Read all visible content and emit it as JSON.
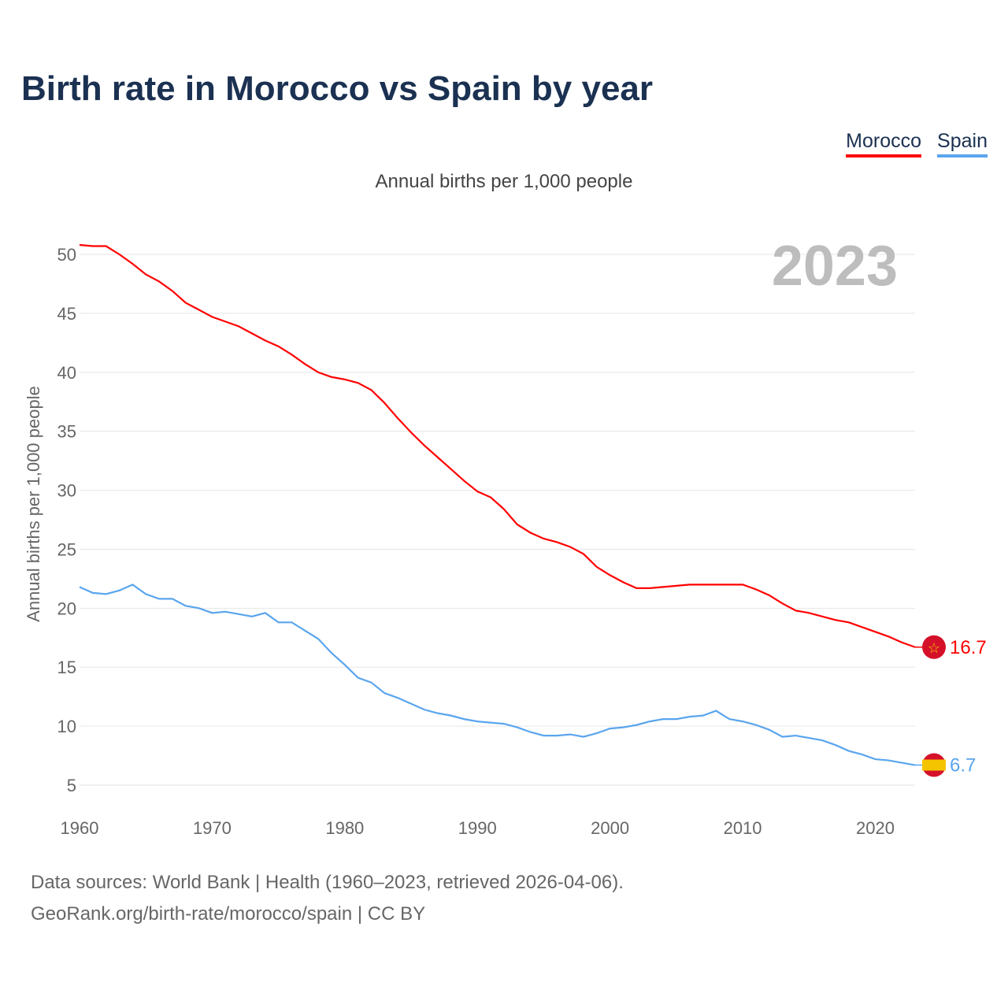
{
  "title": "Birth rate in Morocco vs Spain by year",
  "subtitle": "Annual births per 1,000 people",
  "footer": {
    "line1": "Data sources: World Bank | Health (1960–2023, retrieved 2026-04-06).",
    "line2": "GeoRank.org/birth-rate/morocco/spain | CC BY"
  },
  "colors": {
    "morocco": "#ff0000",
    "spain": "#5aa5ee"
  },
  "chart_data": {
    "type": "line",
    "title": "Birth rate in Morocco vs Spain by year",
    "ylabel": "Annual births per 1,000 people",
    "xlabel": "",
    "year_label": "2023",
    "xlim": [
      1960,
      2023
    ],
    "ylim": [
      5,
      50
    ],
    "xticks": [
      1960,
      1970,
      1980,
      1990,
      2000,
      2010,
      2020
    ],
    "yticks": [
      5,
      10,
      15,
      20,
      25,
      30,
      35,
      40,
      45,
      50
    ],
    "legend": "top-right",
    "x": [
      1960,
      1961,
      1962,
      1963,
      1964,
      1965,
      1966,
      1967,
      1968,
      1969,
      1970,
      1971,
      1972,
      1973,
      1974,
      1975,
      1976,
      1977,
      1978,
      1979,
      1980,
      1981,
      1982,
      1983,
      1984,
      1985,
      1986,
      1987,
      1988,
      1989,
      1990,
      1991,
      1992,
      1993,
      1994,
      1995,
      1996,
      1997,
      1998,
      1999,
      2000,
      2001,
      2002,
      2003,
      2004,
      2005,
      2006,
      2007,
      2008,
      2009,
      2010,
      2011,
      2012,
      2013,
      2014,
      2015,
      2016,
      2017,
      2018,
      2019,
      2020,
      2021,
      2022,
      2023
    ],
    "series": [
      {
        "name": "Morocco",
        "end_label": "16.7",
        "values": [
          50.8,
          50.7,
          50.7,
          50.0,
          49.2,
          48.3,
          47.7,
          46.9,
          45.9,
          45.3,
          44.7,
          44.3,
          43.9,
          43.3,
          42.7,
          42.2,
          41.5,
          40.7,
          40.0,
          39.6,
          39.4,
          39.1,
          38.5,
          37.4,
          36.1,
          34.9,
          33.8,
          32.8,
          31.8,
          30.8,
          29.9,
          29.4,
          28.4,
          27.1,
          26.4,
          25.9,
          25.6,
          25.2,
          24.6,
          23.5,
          22.8,
          22.2,
          21.7,
          21.7,
          21.8,
          21.9,
          22.0,
          22.0,
          22.0,
          22.0,
          22.0,
          21.6,
          21.1,
          20.4,
          19.8,
          19.6,
          19.3,
          19.0,
          18.8,
          18.4,
          18.0,
          17.6,
          17.1,
          16.7
        ]
      },
      {
        "name": "Spain",
        "end_label": "6.7",
        "values": [
          21.8,
          21.3,
          21.2,
          21.5,
          22.0,
          21.2,
          20.8,
          20.8,
          20.2,
          20.0,
          19.6,
          19.7,
          19.5,
          19.3,
          19.6,
          18.8,
          18.8,
          18.1,
          17.4,
          16.2,
          15.2,
          14.1,
          13.7,
          12.8,
          12.4,
          11.9,
          11.4,
          11.1,
          10.9,
          10.6,
          10.4,
          10.3,
          10.2,
          9.9,
          9.5,
          9.2,
          9.2,
          9.3,
          9.1,
          9.4,
          9.8,
          9.9,
          10.1,
          10.4,
          10.6,
          10.6,
          10.8,
          10.9,
          11.3,
          10.6,
          10.4,
          10.1,
          9.7,
          9.1,
          9.2,
          9.0,
          8.8,
          8.4,
          7.9,
          7.6,
          7.2,
          7.1,
          6.9,
          6.7
        ]
      }
    ]
  }
}
